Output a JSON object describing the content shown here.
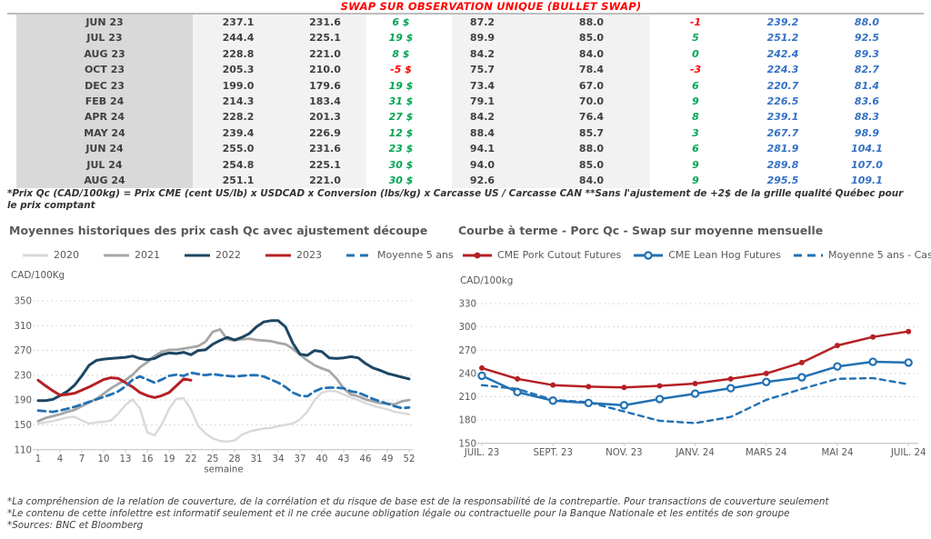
{
  "page_title": "SWAP SUR OBSERVATION UNIQUE (BULLET SWAP)",
  "table": {
    "rows": [
      [
        "JUN 23",
        "237.1",
        "231.6",
        "6 $",
        "87.2",
        "88.0",
        "-1",
        "239.2",
        "88.0"
      ],
      [
        "JUL 23",
        "244.4",
        "225.1",
        "19 $",
        "89.9",
        "85.0",
        "5",
        "251.2",
        "92.5"
      ],
      [
        "AUG 23",
        "228.8",
        "221.0",
        "8 $",
        "84.2",
        "84.0",
        "0",
        "242.4",
        "89.3"
      ],
      [
        "OCT 23",
        "205.3",
        "210.0",
        "-5 $",
        "75.7",
        "78.4",
        "-3",
        "224.3",
        "82.7"
      ],
      [
        "DEC 23",
        "199.0",
        "179.6",
        "19 $",
        "73.4",
        "67.0",
        "6",
        "220.7",
        "81.4"
      ],
      [
        "FEB 24",
        "214.3",
        "183.4",
        "31 $",
        "79.1",
        "70.0",
        "9",
        "226.5",
        "83.6"
      ],
      [
        "APR 24",
        "228.2",
        "201.3",
        "27 $",
        "84.2",
        "76.4",
        "8",
        "239.1",
        "88.3"
      ],
      [
        "MAY 24",
        "239.4",
        "226.9",
        "12 $",
        "88.4",
        "85.7",
        "3",
        "267.7",
        "98.9"
      ],
      [
        "JUN 24",
        "255.0",
        "231.6",
        "23 $",
        "94.1",
        "88.0",
        "6",
        "281.9",
        "104.1"
      ],
      [
        "JUL 24",
        "254.8",
        "225.1",
        "30 $",
        "94.0",
        "85.0",
        "9",
        "289.8",
        "107.0"
      ],
      [
        "AUG 24",
        "251.1",
        "221.0",
        "30 $",
        "92.6",
        "84.0",
        "9",
        "295.5",
        "109.1"
      ]
    ],
    "note": "*Prix Qc (CAD/100kg) = Prix CME (cent US/lb) x USDCAD x Conversion (lbs/kg) x Carcasse US / Carcasse CAN **Sans l'ajustement de +2$ de la grille qualité Québec pour le prix comptant"
  },
  "chart_data": [
    {
      "type": "line",
      "title": "Moyennes historiques des prix cash Qc avec ajustement découpe",
      "ylabel": "CAD/100Kg",
      "xlabel": "semaine",
      "ylim": [
        110,
        350
      ],
      "yticks": [
        110,
        150,
        190,
        230,
        270,
        310,
        350
      ],
      "xticks": [
        1,
        4,
        7,
        10,
        13,
        16,
        19,
        22,
        25,
        28,
        31,
        34,
        37,
        40,
        43,
        46,
        49,
        52
      ],
      "grid": "horizontal-dashed",
      "legend_position": "top",
      "series": [
        {
          "name": "2020",
          "color": "#d9d9d9",
          "style": "solid",
          "values": [
            152,
            154,
            156,
            159,
            162,
            163,
            157,
            152,
            154,
            155,
            157,
            168,
            182,
            191,
            176,
            138,
            133,
            151,
            176,
            192,
            193,
            175,
            148,
            136,
            128,
            124,
            123,
            125,
            134,
            139,
            142,
            144,
            145,
            148,
            150,
            152,
            159,
            171,
            190,
            202,
            205,
            204,
            199,
            194,
            190,
            185,
            181,
            178,
            175,
            171,
            169,
            167
          ]
        },
        {
          "name": "2021",
          "color": "#a6a6a6",
          "style": "solid",
          "values": [
            156,
            161,
            164,
            167,
            171,
            174,
            180,
            186,
            192,
            200,
            209,
            216,
            222,
            231,
            243,
            251,
            261,
            268,
            271,
            271,
            273,
            275,
            277,
            284,
            300,
            304,
            288,
            286,
            288,
            289,
            287,
            286,
            285,
            282,
            280,
            273,
            263,
            254,
            246,
            241,
            237,
            225,
            209,
            199,
            196,
            191,
            188,
            185,
            184,
            183,
            188,
            190
          ]
        },
        {
          "name": "2022",
          "color": "#1d4663",
          "style": "solid",
          "values": [
            189,
            189,
            191,
            197,
            204,
            214,
            229,
            246,
            254,
            256,
            257,
            258,
            259,
            261,
            257,
            255,
            257,
            263,
            266,
            265,
            267,
            263,
            270,
            271,
            280,
            286,
            291,
            287,
            291,
            297,
            308,
            316,
            318,
            318,
            308,
            282,
            264,
            262,
            270,
            268,
            258,
            257,
            258,
            260,
            258,
            249,
            242,
            238,
            233,
            230,
            227,
            224
          ]
        },
        {
          "name": "2023",
          "color": "#b52025",
          "style": "solid",
          "values": [
            222,
            213,
            205,
            198,
            199,
            201,
            206,
            211,
            217,
            223,
            226,
            225,
            218,
            211,
            202,
            197,
            194,
            197,
            202,
            213,
            224,
            222
          ]
        },
        {
          "name": "Moyenne 5 ans",
          "color": "#2271b3",
          "style": "dashed",
          "values": [
            173,
            172,
            171,
            173,
            176,
            179,
            183,
            187,
            191,
            195,
            199,
            204,
            212,
            223,
            228,
            223,
            218,
            223,
            229,
            231,
            229,
            234,
            232,
            230,
            232,
            230,
            229,
            228,
            229,
            230,
            230,
            228,
            223,
            218,
            211,
            202,
            197,
            196,
            204,
            209,
            210,
            210,
            209,
            204,
            202,
            197,
            192,
            188,
            184,
            180,
            177,
            178
          ]
        }
      ]
    },
    {
      "type": "line",
      "title": "Courbe à terme - Porc Qc - Swap sur moyenne mensuelle",
      "ylabel": "CAD/100kg",
      "ylim": [
        150,
        330
      ],
      "yticks": [
        150,
        180,
        210,
        240,
        270,
        300,
        330
      ],
      "xtick_labels": [
        "JUIL. 23",
        "SEPT. 23",
        "NOV. 23",
        "JANV. 24",
        "MARS 24",
        "MAI 24",
        "JUIL. 24"
      ],
      "xtick_positions": [
        0,
        2,
        4,
        6,
        8,
        10,
        12
      ],
      "n_points": 13,
      "grid": "horizontal-dashed",
      "legend_position": "top",
      "series": [
        {
          "name": "CME Pork Cutout Futures",
          "color": "#b52025",
          "style": "solid",
          "marker": "filled",
          "values": [
            247,
            233,
            225,
            223,
            222,
            224,
            227,
            233,
            240,
            254,
            276,
            287,
            294
          ]
        },
        {
          "name": "CME Lean Hog Futures",
          "color": "#2271b3",
          "style": "solid",
          "marker": "open",
          "values": [
            237,
            216,
            205,
            202,
            199,
            207,
            214,
            221,
            229,
            235,
            249,
            255,
            254
          ]
        },
        {
          "name": "Moyenne 5 ans - Cash",
          "color": "#2271b3",
          "style": "dashed",
          "values": [
            225,
            220,
            206,
            203,
            191,
            179,
            176,
            184,
            206,
            220,
            233,
            234,
            226
          ]
        }
      ]
    }
  ],
  "footer": {
    "lines": [
      "*La compréhension de la relation de couverture, de la corrélation et du risque de base est de la responsabilité de la contrepartie. Pour transactions de couverture seulement",
      "*Le contenu de cette infolettre est informatif seulement et il ne crée aucune obligation légale ou contractuelle pour la Banque Nationale et les entités de son groupe",
      "*Sources: BNC et Bloomberg"
    ]
  }
}
